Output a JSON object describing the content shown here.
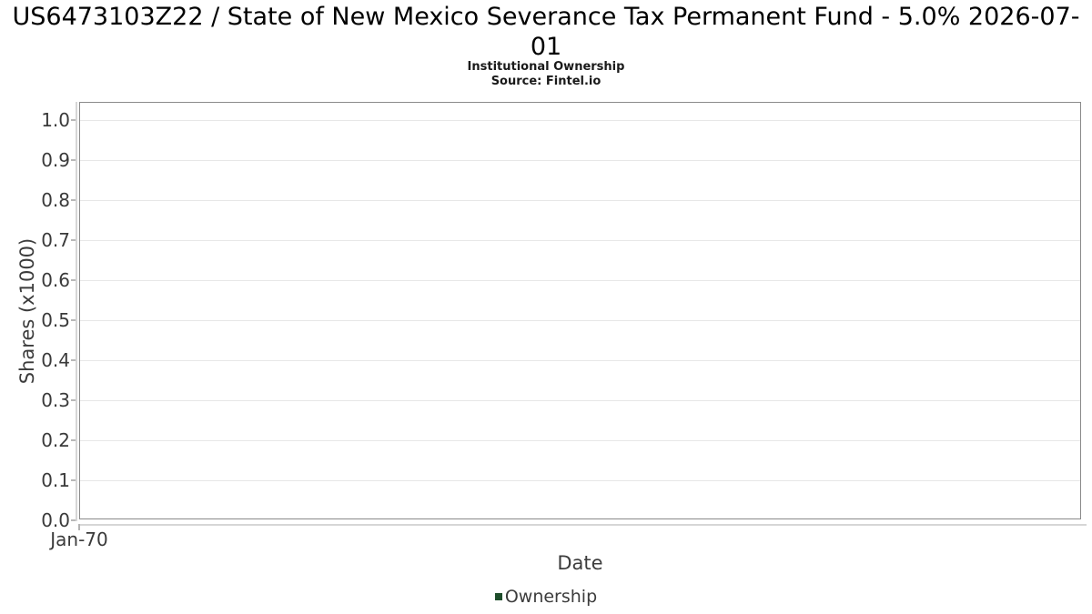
{
  "chart_data": {
    "type": "line",
    "title": "US6473103Z22 / State of New Mexico Severance Tax Permanent Fund - 5.0% 2026-07-01",
    "subtitle": "Institutional Ownership",
    "source": "Source: Fintel.io",
    "xlabel": "Date",
    "ylabel": "Shares (x1000)",
    "x_tick_labels": [
      "Jan-70"
    ],
    "y_ticks": [
      0.0,
      0.1,
      0.2,
      0.3,
      0.4,
      0.5,
      0.6,
      0.7,
      0.8,
      0.9,
      1.0
    ],
    "ylim": [
      0.0,
      1.0
    ],
    "grid": true,
    "legend_position": "bottom",
    "series": [
      {
        "name": "Ownership",
        "color": "#1e4d2b",
        "x": [],
        "y": []
      }
    ]
  },
  "colors": {
    "legend_marker": "#1e4d2b",
    "plot_border": "#8a8a8a",
    "grid_line": "#e7e7e7",
    "axis_line": "#d6d6d6",
    "tick_mark": "#b8b8b8",
    "tick_text": "#3a3a3a",
    "title_text": "#000000"
  }
}
